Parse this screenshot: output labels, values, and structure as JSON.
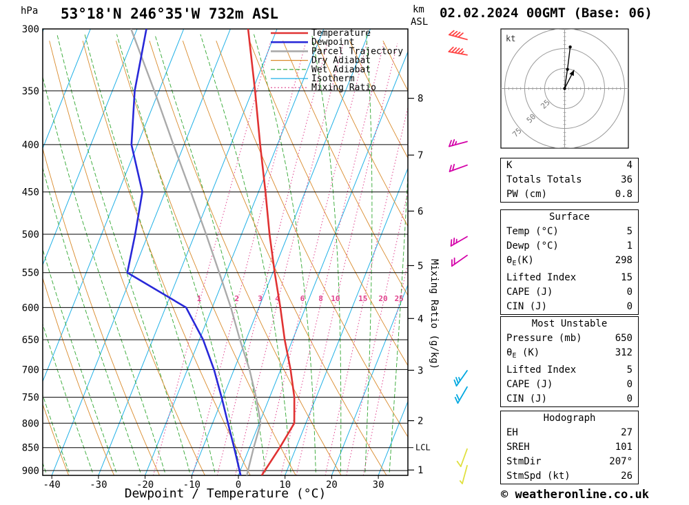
{
  "header": {
    "station": "53°18'N 246°35'W 732m ASL",
    "datetime": "02.02.2024 00GMT (Base: 06)"
  },
  "axes": {
    "pressure_unit": "hPa",
    "km_unit": "km",
    "asl_unit": "ASL",
    "xlabel": "Dewpoint / Temperature (°C)",
    "mixing_axis_label": "Mixing Ratio (g/kg)",
    "lcl_label": "LCL",
    "pressure_ticks": [
      300,
      350,
      400,
      450,
      500,
      550,
      600,
      650,
      700,
      750,
      800,
      850,
      900
    ],
    "temp_ticks": [
      -40,
      -30,
      -20,
      -10,
      0,
      10,
      20,
      30
    ],
    "km_ticks": [
      1,
      2,
      3,
      4,
      5,
      6,
      7,
      8
    ]
  },
  "legend": [
    {
      "label": "Temperature",
      "color": "#e03232",
      "width": 2.6,
      "dash": ""
    },
    {
      "label": "Dewpoint",
      "color": "#2828d8",
      "width": 2.6,
      "dash": ""
    },
    {
      "label": "Parcel Trajectory",
      "color": "#aaaaaa",
      "width": 2.6,
      "dash": ""
    },
    {
      "label": "Dry Adiabat",
      "color": "#d98a2b",
      "width": 1.2,
      "dash": ""
    },
    {
      "label": "Wet Adiabat",
      "color": "#2fa62f",
      "width": 1.2,
      "dash": "6 3"
    },
    {
      "label": "Isotherm",
      "color": "#1fb0e6",
      "width": 1.2,
      "dash": ""
    },
    {
      "label": "Mixing Ratio",
      "color": "#e0408c",
      "width": 1.2,
      "dash": "2 3"
    }
  ],
  "chart_data": {
    "type": "line",
    "diagram": "skew-t-log-p",
    "title": "53°18'N 246°35'W 732m ASL",
    "valid": "02.02.2024 00GMT (Base: 06)",
    "x_axis": {
      "label": "Dewpoint / Temperature (°C)",
      "ticks": [
        -40,
        -30,
        -20,
        -10,
        0,
        10,
        20,
        30
      ],
      "unit": "°C"
    },
    "y_axis": {
      "unit": "hPa",
      "log": true,
      "ticks": [
        300,
        350,
        400,
        450,
        500,
        550,
        600,
        650,
        700,
        750,
        800,
        850,
        900
      ],
      "km_asl_ticks": [
        1,
        2,
        3,
        4,
        5,
        6,
        7,
        8
      ]
    },
    "series": [
      {
        "name": "Temperature",
        "color": "#e03232",
        "points_p_t": [
          [
            911,
            5
          ],
          [
            850,
            6.5
          ],
          [
            800,
            7.5
          ],
          [
            750,
            5.3
          ],
          [
            700,
            2.1
          ],
          [
            650,
            -1.7
          ],
          [
            600,
            -5.4
          ],
          [
            550,
            -9.6
          ],
          [
            500,
            -14
          ],
          [
            450,
            -18.5
          ],
          [
            400,
            -23.7
          ],
          [
            350,
            -29.4
          ],
          [
            300,
            -36.2
          ]
        ]
      },
      {
        "name": "Dewpoint",
        "color": "#2828d8",
        "points_p_t": [
          [
            911,
            0.5
          ],
          [
            850,
            -3.3
          ],
          [
            800,
            -6.7
          ],
          [
            750,
            -10.3
          ],
          [
            700,
            -14.3
          ],
          [
            650,
            -19.2
          ],
          [
            600,
            -25.6
          ],
          [
            550,
            -41.2
          ],
          [
            500,
            -42.8
          ],
          [
            450,
            -44.9
          ],
          [
            400,
            -51.3
          ],
          [
            350,
            -55.2
          ],
          [
            300,
            -58
          ]
        ]
      },
      {
        "name": "Parcel Trajectory",
        "color": "#aaaaaa",
        "points_p_t": [
          [
            911,
            1.8
          ],
          [
            850,
            0.9
          ],
          [
            800,
            0.3
          ],
          [
            750,
            -2.9
          ],
          [
            700,
            -6.7
          ],
          [
            650,
            -11.3
          ],
          [
            600,
            -16
          ],
          [
            550,
            -21.5
          ],
          [
            500,
            -27.6
          ],
          [
            450,
            -34.5
          ],
          [
            400,
            -42.3
          ],
          [
            350,
            -51
          ],
          [
            300,
            -61.3
          ]
        ]
      }
    ],
    "mixing_ratio_lines_gkg": [
      1,
      2,
      3,
      4,
      6,
      8,
      10,
      15,
      20,
      25
    ],
    "isotherm_step_c": 10,
    "dry_adiabat_step_k": 10,
    "wet_adiabat_step_c": 5,
    "lcl_pressure_hpa": 850,
    "wind_barbs": [
      {
        "p": 308,
        "dir": 285,
        "speed_kt": 40,
        "color": "#ff4444"
      },
      {
        "p": 320,
        "dir": 280,
        "speed_kt": 45,
        "color": "#ff4444"
      },
      {
        "p": 397,
        "dir": 255,
        "speed_kt": 25,
        "color": "#d400a8"
      },
      {
        "p": 421,
        "dir": 250,
        "speed_kt": 20,
        "color": "#d400a8"
      },
      {
        "p": 503,
        "dir": 240,
        "speed_kt": 25,
        "color": "#d400a8"
      },
      {
        "p": 527,
        "dir": 235,
        "speed_kt": 20,
        "color": "#d400a8"
      },
      {
        "p": 702,
        "dir": 215,
        "speed_kt": 25,
        "color": "#00a8e0"
      },
      {
        "p": 731,
        "dir": 210,
        "speed_kt": 20,
        "color": "#00a8e0"
      },
      {
        "p": 853,
        "dir": 200,
        "speed_kt": 10,
        "color": "#e0e040"
      },
      {
        "p": 889,
        "dir": 195,
        "speed_kt": 5,
        "color": "#e0e040"
      }
    ]
  },
  "hodograph": {
    "unit_label": "kt",
    "ring_labels": [
      25,
      50,
      75
    ],
    "ring_spacing_kt": 25,
    "trace_uv_kt": [
      [
        0,
        0
      ],
      [
        3.5,
        24
      ],
      [
        7,
        52
      ]
    ],
    "storm_motion": {
      "dir_deg": 207,
      "speed_kt": 26
    }
  },
  "tables": [
    {
      "rows": [
        [
          "K",
          "4"
        ],
        [
          "Totals Totals",
          "36"
        ],
        [
          "PW (cm)",
          "0.8"
        ]
      ]
    },
    {
      "title": "Surface",
      "rows": [
        [
          "Temp (°C)",
          "5"
        ],
        [
          "Dewp (°C)",
          "1"
        ],
        [
          "θE(K)",
          "298"
        ],
        [
          "Lifted Index",
          "15"
        ],
        [
          "CAPE (J)",
          "0"
        ],
        [
          "CIN (J)",
          "0"
        ]
      ]
    },
    {
      "title": "Most Unstable",
      "rows": [
        [
          "Pressure (mb)",
          "650"
        ],
        [
          "θE (K)",
          "312"
        ],
        [
          "Lifted Index",
          "5"
        ],
        [
          "CAPE (J)",
          "0"
        ],
        [
          "CIN (J)",
          "0"
        ]
      ]
    },
    {
      "title": "Hodograph",
      "rows": [
        [
          "EH",
          "27"
        ],
        [
          "SREH",
          "101"
        ],
        [
          "StmDir",
          "207°"
        ],
        [
          "StmSpd (kt)",
          "26"
        ]
      ]
    }
  ],
  "footer": {
    "copyright": "© weatheronline.co.uk"
  }
}
